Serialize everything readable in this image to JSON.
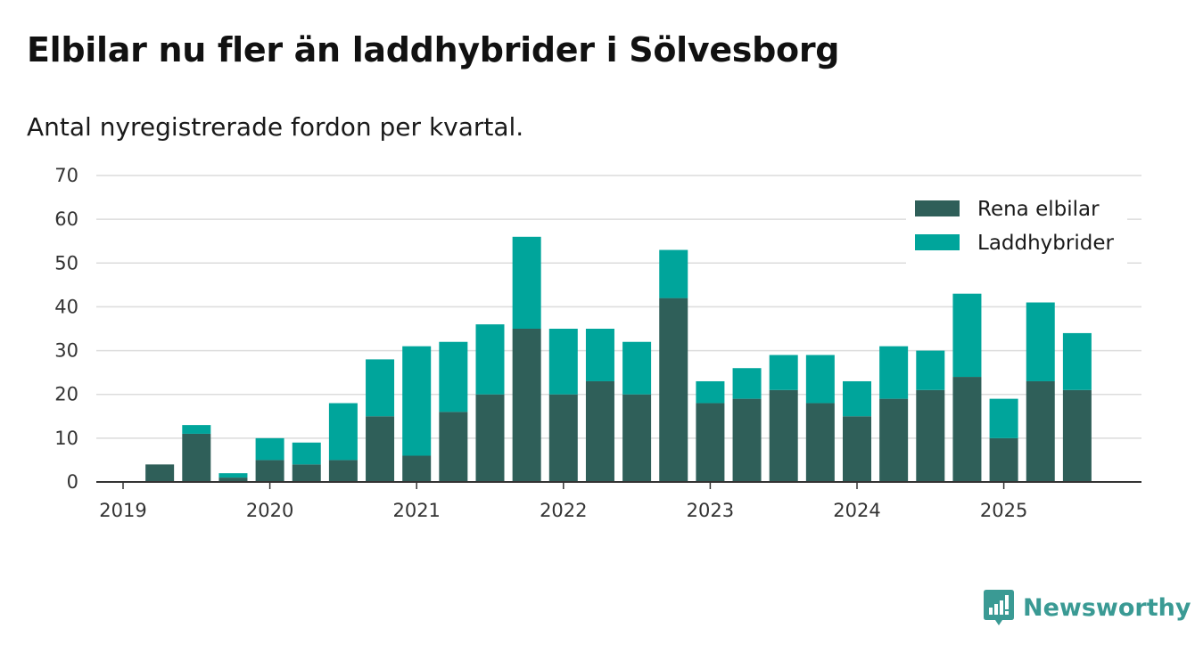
{
  "title": "Elbilar nu fler än laddhybrider i Sölvesborg",
  "subtitle": "Antal nyregistrerade fordon per kvartal.",
  "brand": {
    "name": "Newsworthy",
    "color": "#3a9a94"
  },
  "chart_data": {
    "type": "bar",
    "stacked": true,
    "x_tick_labels": [
      "2019",
      "2020",
      "2021",
      "2022",
      "2023",
      "2024",
      "2025"
    ],
    "categories": [
      "2019Q1",
      "2019Q2",
      "2019Q3",
      "2019Q4",
      "2020Q1",
      "2020Q2",
      "2020Q3",
      "2020Q4",
      "2021Q1",
      "2021Q2",
      "2021Q3",
      "2021Q4",
      "2022Q1",
      "2022Q2",
      "2022Q3",
      "2022Q4",
      "2023Q1",
      "2023Q2",
      "2023Q3",
      "2023Q4",
      "2024Q1",
      "2024Q2",
      "2024Q3",
      "2024Q4",
      "2025Q1",
      "2025Q2",
      "2025Q3"
    ],
    "series": [
      {
        "name": "Rena elbilar",
        "color": "#2f5f59",
        "values": [
          0,
          4,
          11,
          1,
          5,
          4,
          5,
          15,
          6,
          16,
          20,
          35,
          20,
          23,
          20,
          42,
          18,
          19,
          21,
          18,
          15,
          19,
          21,
          24,
          10,
          23,
          21
        ]
      },
      {
        "name": "Laddhybrider",
        "color": "#00a59b",
        "values": [
          0,
          0,
          2,
          1,
          5,
          5,
          13,
          13,
          25,
          16,
          16,
          21,
          15,
          12,
          12,
          11,
          5,
          7,
          8,
          11,
          8,
          12,
          9,
          19,
          9,
          18,
          13
        ]
      }
    ],
    "ylim": [
      0,
      70
    ],
    "yticks": [
      0,
      10,
      20,
      30,
      40,
      50,
      60,
      70
    ],
    "legend_position": "top-right",
    "grid": true
  }
}
